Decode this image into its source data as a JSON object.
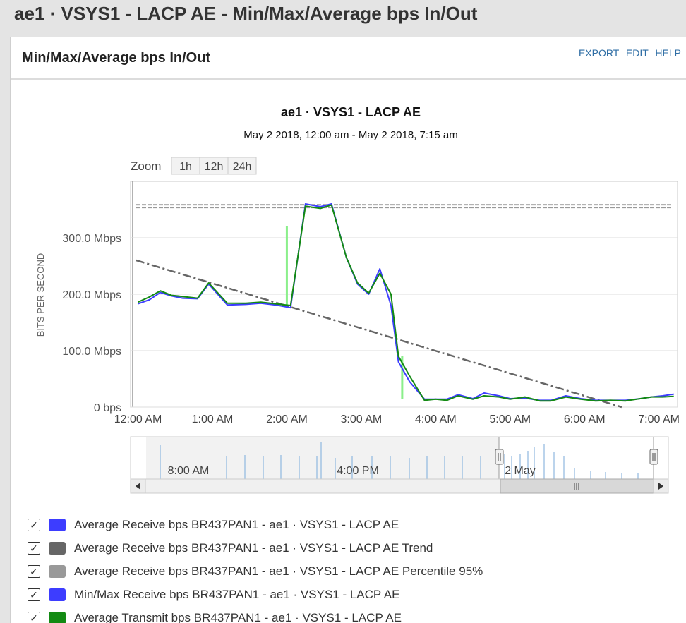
{
  "page": {
    "title": "ae1 · VSYS1 - LACP AE - Min/Max/Average bps In/Out"
  },
  "panel": {
    "title": "Min/Max/Average bps In/Out",
    "actions": [
      "EXPORT",
      "EDIT",
      "HELP"
    ]
  },
  "zoom": {
    "label": "Zoom",
    "buttons": [
      "1h",
      "12h",
      "24h"
    ]
  },
  "chart_data": {
    "type": "line",
    "title": "ae1 · VSYS1 - LACP AE",
    "subtitle": "May 2 2018, 12:00 am - May 2 2018, 7:15 am",
    "ylabel": "BITS PER SECOND",
    "xlabel": "",
    "ylim": [
      0,
      400
    ],
    "xlim": [
      -0.1,
      7.25
    ],
    "y_ticks": [
      "0 bps",
      "100.0 Mbps",
      "200.0 Mbps",
      "300.0 Mbps"
    ],
    "y_tick_values": [
      0,
      100,
      200,
      300
    ],
    "x_ticks": [
      "12:00 AM",
      "1:00 AM",
      "2:00 AM",
      "3:00 AM",
      "4:00 AM",
      "5:00 AM",
      "6:00 AM",
      "7:00 AM"
    ],
    "x_tick_values": [
      0,
      1,
      2,
      3,
      4,
      5,
      6,
      7
    ],
    "grid": true,
    "series": [
      {
        "name": "Average Receive bps BR437PAN1 - ae1 · VSYS1 - LACP AE",
        "color": "#3d3dff",
        "x": [
          0,
          0.15,
          0.3,
          0.45,
          0.6,
          0.8,
          0.95,
          1.2,
          1.45,
          1.65,
          1.85,
          2.05,
          2.25,
          2.45,
          2.6,
          2.8,
          2.95,
          3.1,
          3.25,
          3.4,
          3.5,
          3.65,
          3.85,
          4.0,
          4.15,
          4.3,
          4.5,
          4.65,
          4.85,
          5.0,
          5.2,
          5.4,
          5.55,
          5.75,
          5.95,
          6.15,
          6.35,
          6.55,
          6.75,
          6.9,
          7.05,
          7.2
        ],
        "y": [
          183,
          190,
          203,
          197,
          193,
          192,
          218,
          181,
          182,
          184,
          181,
          176,
          360,
          355,
          360,
          265,
          218,
          200,
          245,
          180,
          80,
          45,
          14,
          14,
          14,
          22,
          15,
          25,
          20,
          15,
          16,
          12,
          12,
          20,
          15,
          12,
          12,
          12,
          15,
          18,
          20,
          23
        ]
      },
      {
        "name": "Average Receive bps BR437PAN1 - ae1 · VSYS1 - LACP AE Trend",
        "color": "#666666",
        "x": [
          -0.1,
          6.5
        ],
        "y": [
          260,
          0
        ]
      },
      {
        "name": "Average Receive bps BR437PAN1 - ae1 · VSYS1 - LACP AE Percentile 95%",
        "color": "#999999",
        "x": [
          -0.1,
          7.25
        ],
        "y": [
          356,
          356
        ]
      },
      {
        "name": "Min/Max Receive bps BR437PAN1 - ae1 · VSYS1 - LACP AE",
        "color": "#3d3dff",
        "x": [],
        "y": []
      },
      {
        "name": "Average Transmit bps BR437PAN1 - ae1 · VSYS1 - LACP AE",
        "color": "#138a13",
        "x": [
          0,
          0.15,
          0.3,
          0.45,
          0.6,
          0.8,
          0.95,
          1.2,
          1.45,
          1.65,
          1.85,
          2.05,
          2.25,
          2.45,
          2.6,
          2.8,
          2.95,
          3.1,
          3.25,
          3.4,
          3.5,
          3.65,
          3.85,
          4.0,
          4.15,
          4.3,
          4.5,
          4.65,
          4.85,
          5.0,
          5.2,
          5.4,
          5.55,
          5.75,
          5.95,
          6.15,
          6.35,
          6.55,
          6.75,
          6.9,
          7.05,
          7.2
        ],
        "y": [
          186,
          195,
          206,
          198,
          196,
          193,
          220,
          184,
          184,
          186,
          183,
          180,
          356,
          352,
          358,
          265,
          220,
          202,
          237,
          200,
          90,
          55,
          12,
          14,
          12,
          20,
          14,
          20,
          18,
          14,
          18,
          11,
          11,
          18,
          14,
          11,
          12,
          11,
          15,
          18,
          18,
          19
        ]
      }
    ],
    "minmax_bars": [
      {
        "x": 2.0,
        "low": 180,
        "high": 320,
        "color": "#8bef8b"
      },
      {
        "x": 3.55,
        "low": 15,
        "high": 90,
        "color": "#8bef8b"
      }
    ],
    "navigator": {
      "labels": [
        "8:00 AM",
        "4:00 PM",
        "2 May"
      ]
    },
    "legend_position": "bottom"
  }
}
